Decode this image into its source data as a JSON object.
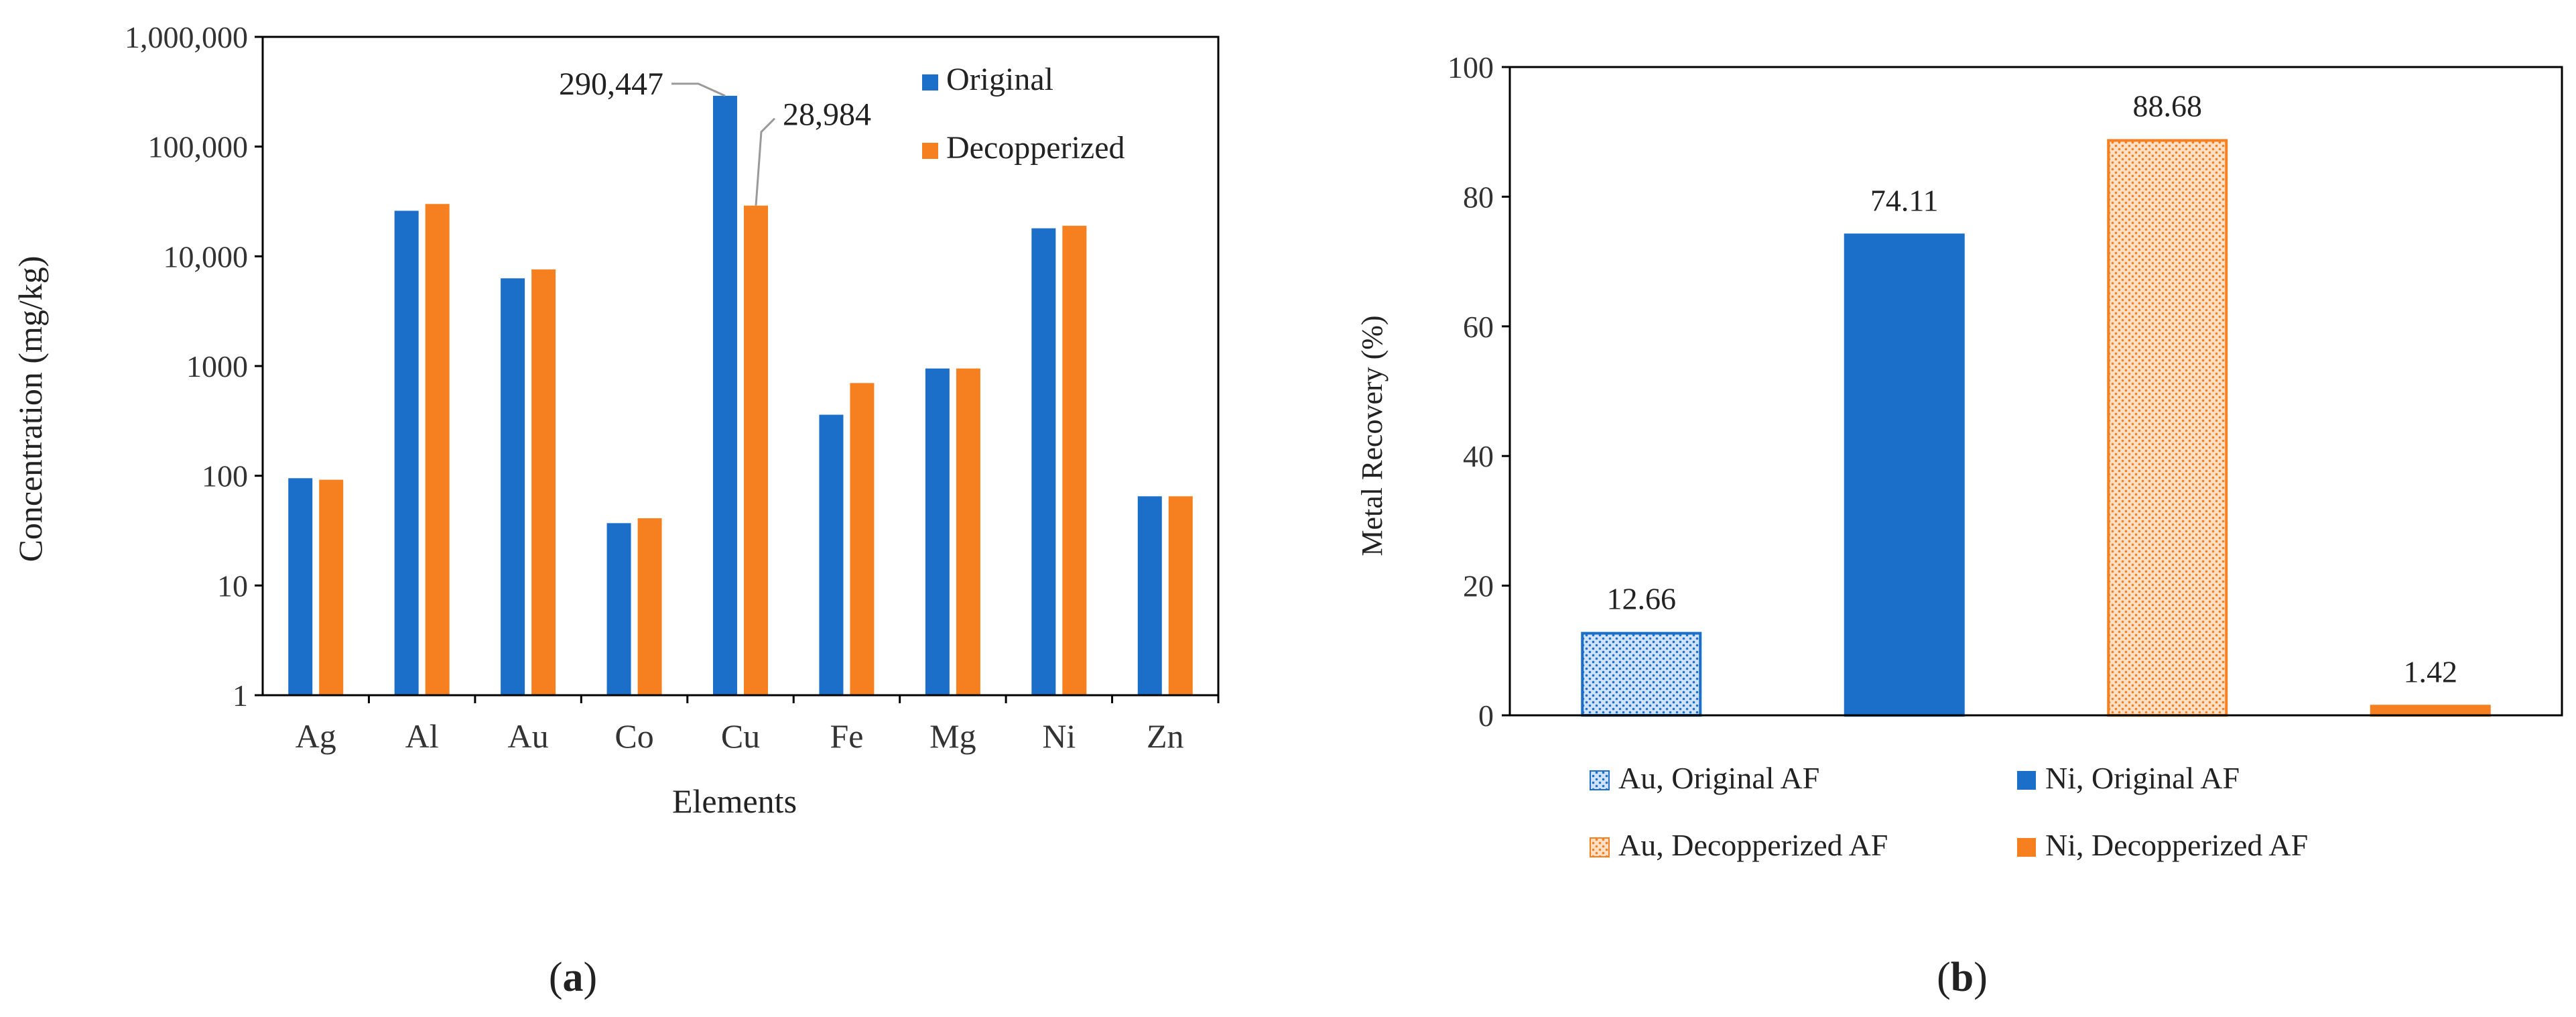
{
  "panels": [
    {
      "label": "a"
    },
    {
      "label": "b"
    }
  ],
  "colors": {
    "original": "#1B6FC8",
    "decopperized": "#F6801F",
    "axis": "#000000",
    "callout": "#9a9a9a"
  },
  "chart_data": [
    {
      "type": "bar",
      "scale": "log",
      "categories": [
        "Ag",
        "Al",
        "Au",
        "Co",
        "Cu",
        "Fe",
        "Mg",
        "Ni",
        "Zn"
      ],
      "series": [
        {
          "name": "Original",
          "values": [
            95,
            26000,
            6300,
            37,
            290447,
            360,
            950,
            18000,
            65
          ]
        },
        {
          "name": "Decopperized",
          "values": [
            92,
            30000,
            7600,
            41,
            28984,
            700,
            950,
            19000,
            65
          ]
        }
      ],
      "xlabel": "Elements",
      "ylabel": "Concentration (mg/kg)",
      "ylim": [
        1,
        1000000
      ],
      "yticks": [
        1,
        10,
        100,
        1000,
        10000,
        100000,
        1000000
      ],
      "ytick_labels": [
        "1",
        "10",
        "100",
        "1000",
        "10,000",
        "100,000",
        "1,000,000"
      ],
      "annotations": [
        {
          "text": "290,447",
          "category": "Cu",
          "series": "Original"
        },
        {
          "text": "28,984",
          "category": "Cu",
          "series": "Decopperized"
        }
      ],
      "legend": "top-right"
    },
    {
      "type": "bar",
      "categories": [
        "Au, Original AF",
        "Ni, Original AF",
        "Au, Decopperized AF",
        "Ni, Decopperized AF"
      ],
      "values": [
        12.66,
        74.11,
        88.68,
        1.42
      ],
      "value_labels": [
        "12.66",
        "74.11",
        "88.68",
        "1.42"
      ],
      "styles": [
        "pattern-blue",
        "solid-blue",
        "pattern-orange",
        "solid-orange"
      ],
      "xlabel": "",
      "ylabel": "Metal Recovery (%)",
      "ylim": [
        0,
        100
      ],
      "yticks": [
        0,
        20,
        40,
        60,
        80,
        100
      ],
      "legend": "bottom"
    }
  ]
}
